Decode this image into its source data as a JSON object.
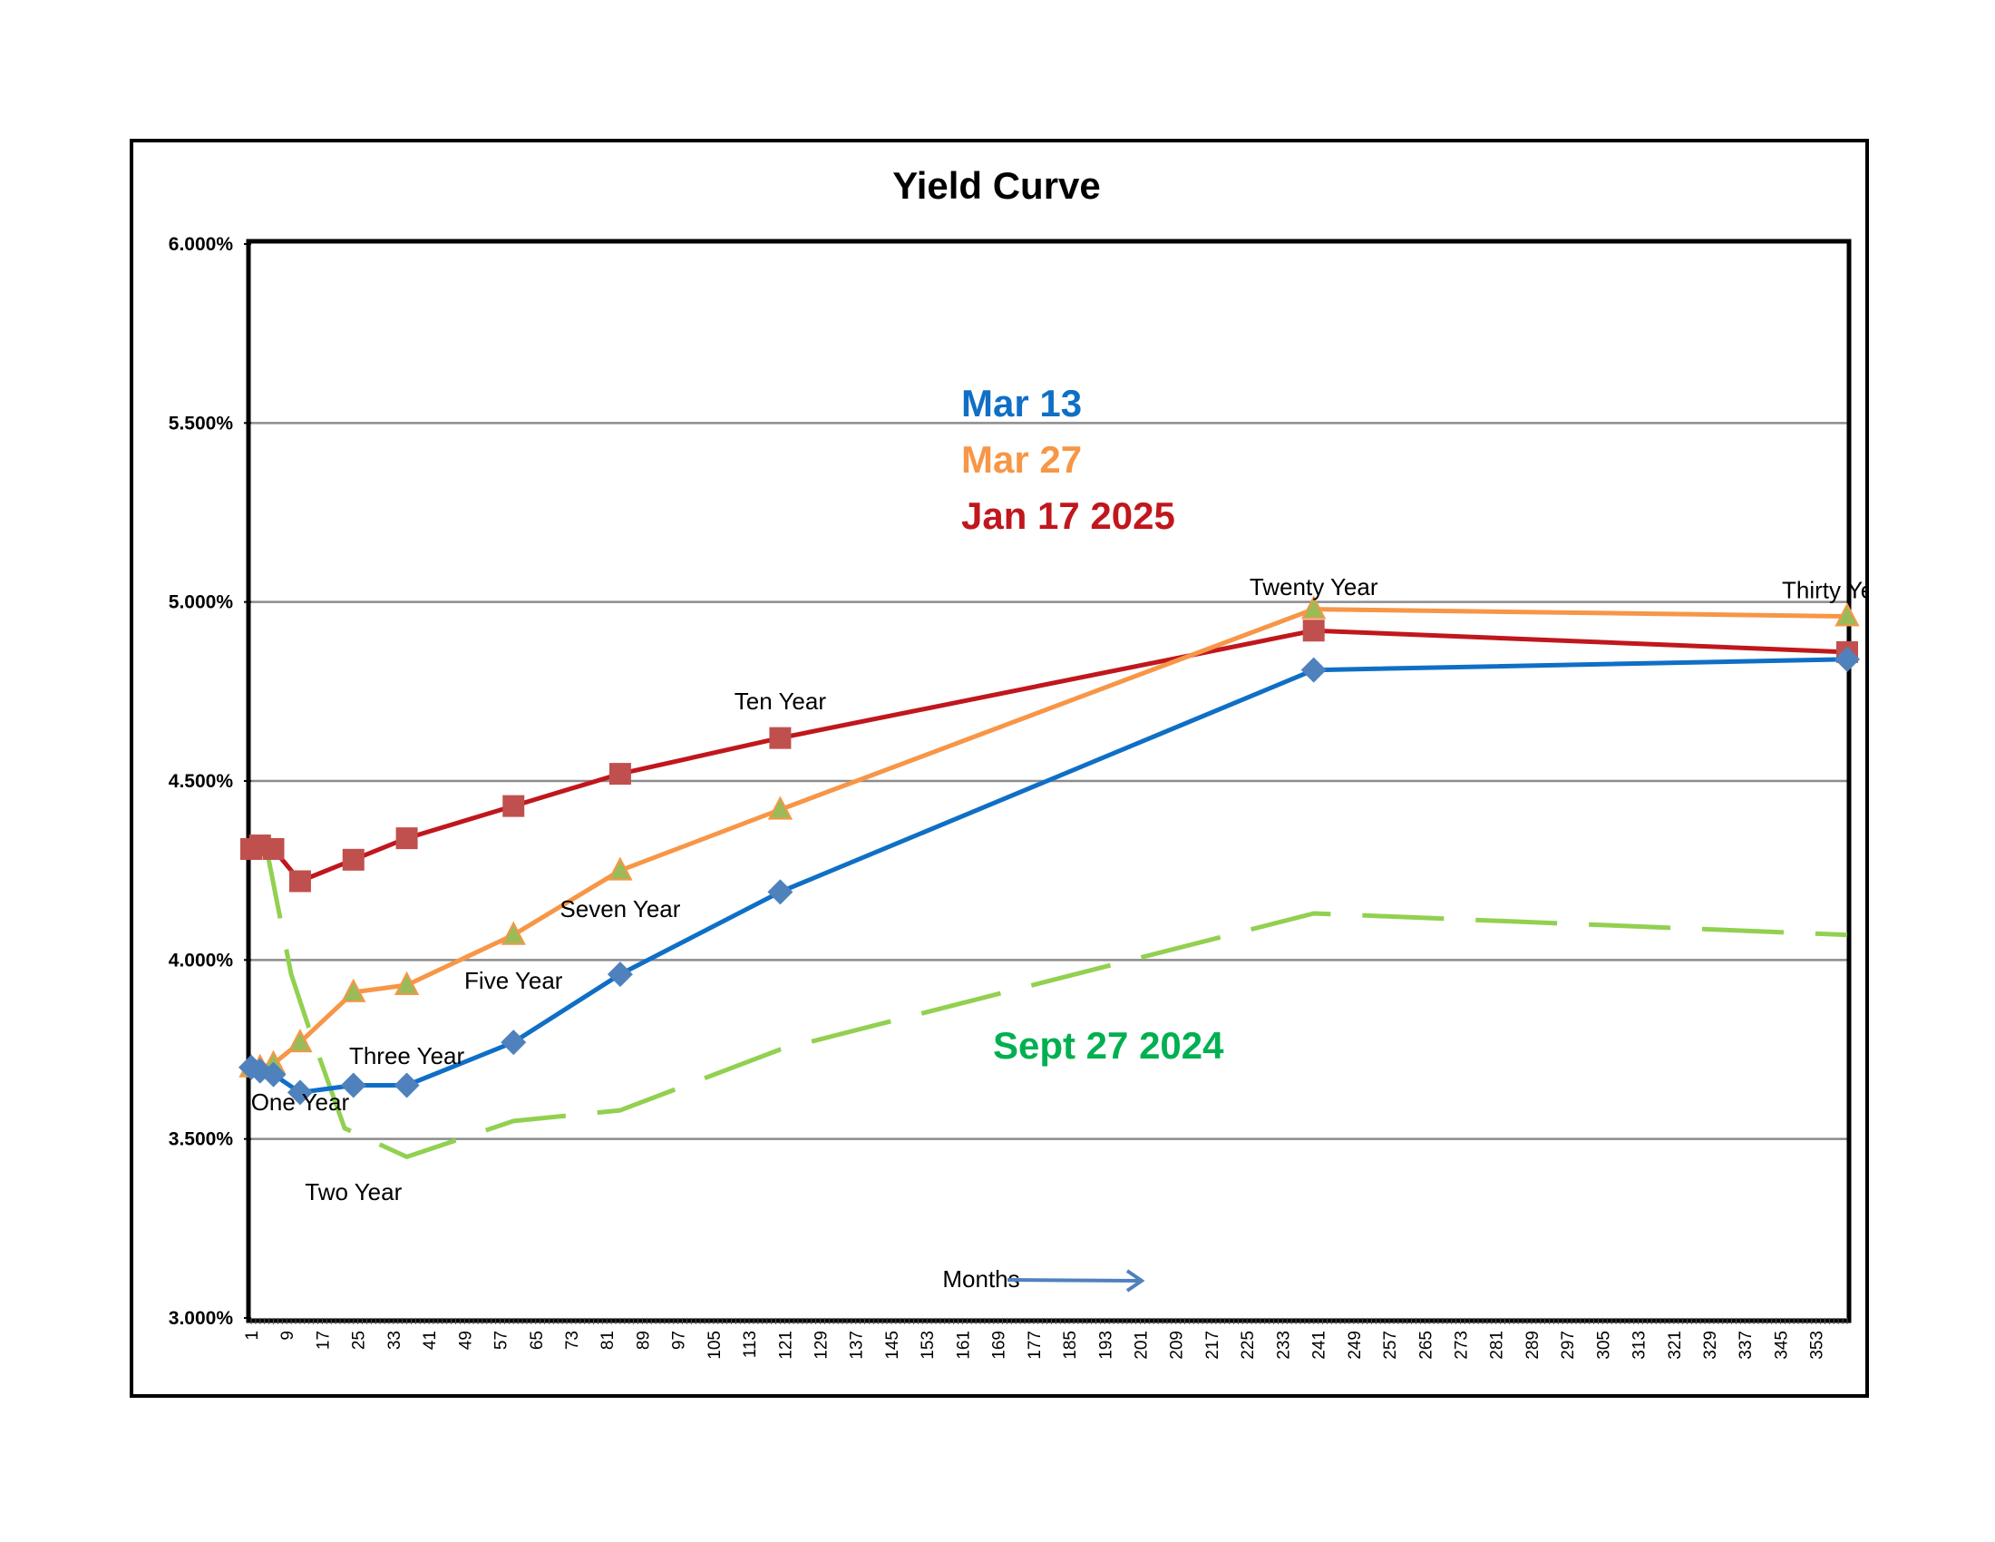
{
  "chart_data": {
    "type": "line",
    "title": "Yield Curve",
    "xlabel": "Months",
    "ylabel": "",
    "xlim": [
      1,
      360
    ],
    "ylim": [
      3.0,
      6.0
    ],
    "y_ticks": [
      "3.000%",
      "3.500%",
      "4.000%",
      "4.500%",
      "5.000%",
      "5.500%",
      "6.000%"
    ],
    "x_ticks": [
      "1",
      "9",
      "17",
      "25",
      "33",
      "41",
      "49",
      "57",
      "65",
      "73",
      "81",
      "89",
      "97",
      "105",
      "113",
      "121",
      "129",
      "137",
      "145",
      "153",
      "161",
      "169",
      "177",
      "185",
      "193",
      "201",
      "209",
      "217",
      "225",
      "233",
      "241",
      "249",
      "257",
      "265",
      "273",
      "281",
      "289",
      "297",
      "305",
      "313",
      "321",
      "329",
      "337",
      "345",
      "353"
    ],
    "grid": true,
    "series": [
      {
        "name": "Jan 17 2025",
        "color": "#c0171d",
        "marker_color": "#c0504d",
        "marker": "square",
        "points": [
          [
            1,
            4.31
          ],
          [
            3,
            4.32
          ],
          [
            6,
            4.31
          ],
          [
            12,
            4.22
          ],
          [
            24,
            4.28
          ],
          [
            36,
            4.34
          ],
          [
            60,
            4.43
          ],
          [
            84,
            4.52
          ],
          [
            120,
            4.62
          ],
          [
            240,
            4.92
          ],
          [
            360,
            4.86
          ]
        ]
      },
      {
        "name": "Mar 27",
        "color": "#f79646",
        "marker_color": "#9bbb59",
        "marker": "triangle",
        "points": [
          [
            1,
            3.7
          ],
          [
            3,
            3.7
          ],
          [
            6,
            3.71
          ],
          [
            12,
            3.77
          ],
          [
            24,
            3.91
          ],
          [
            36,
            3.93
          ],
          [
            60,
            4.07
          ],
          [
            84,
            4.25
          ],
          [
            120,
            4.42
          ],
          [
            240,
            4.98
          ],
          [
            360,
            4.96
          ]
        ]
      },
      {
        "name": "Mar 13",
        "color": "#0f6fc6",
        "marker_color": "#4f81bd",
        "marker": "diamond",
        "points": [
          [
            1,
            3.7
          ],
          [
            3,
            3.69
          ],
          [
            6,
            3.68
          ],
          [
            12,
            3.63
          ],
          [
            24,
            3.65
          ],
          [
            36,
            3.65
          ],
          [
            60,
            3.77
          ],
          [
            84,
            3.96
          ],
          [
            120,
            4.19
          ],
          [
            240,
            4.81
          ],
          [
            360,
            4.84
          ]
        ]
      },
      {
        "name": "Sept 27 2024",
        "color": "#92d050",
        "marker": "none",
        "points": [
          [
            4,
            4.34
          ],
          [
            10,
            3.96
          ],
          [
            14,
            3.81
          ],
          [
            22,
            3.53
          ],
          [
            36,
            3.45
          ],
          [
            60,
            3.55
          ],
          [
            84,
            3.58
          ],
          [
            120,
            3.75
          ],
          [
            240,
            4.13
          ],
          [
            360,
            4.07
          ]
        ]
      }
    ],
    "annotations": [
      {
        "text": "One Year",
        "x": 12,
        "y": 3.58
      },
      {
        "text": "Two Year",
        "x": 24,
        "y": 3.33
      },
      {
        "text": "Three Year",
        "x": 36,
        "y": 3.71
      },
      {
        "text": "Five Year",
        "x": 60,
        "y": 3.92
      },
      {
        "text": "Seven Year",
        "x": 84,
        "y": 4.12
      },
      {
        "text": "Ten Year",
        "x": 120,
        "y": 4.7
      },
      {
        "text": "Twenty Year",
        "x": 240,
        "y": 5.02
      },
      {
        "text": "Thirty Year",
        "x": 358,
        "y": 5.01
      }
    ],
    "legend_labels": [
      {
        "text": "Mar 13",
        "color": "#0f6fc6"
      },
      {
        "text": "Mar 27",
        "color": "#f79646"
      },
      {
        "text": "Jan 17 2025",
        "color": "#c0171d"
      }
    ],
    "series_label": {
      "text": "Sept 27 2024",
      "color": "#00b050"
    }
  }
}
